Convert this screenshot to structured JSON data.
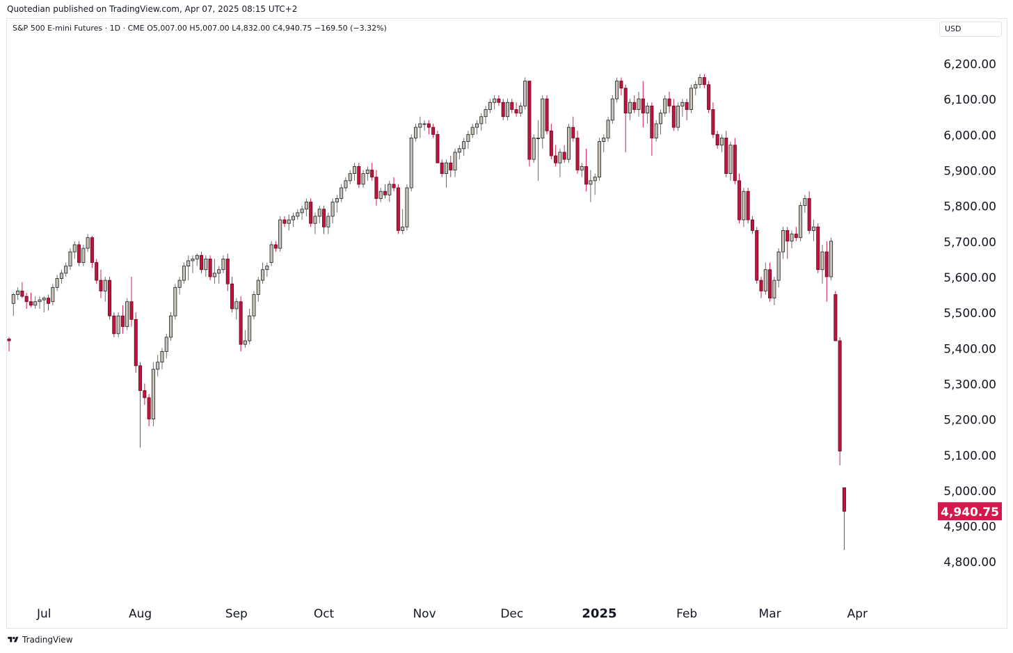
{
  "published": "Quotedian published on TradingView.com, Apr 07, 2025 08:15 UTC+2",
  "legend": "S&P 500 E-mini Futures · 1D · CME  O5,007.00  H5,007.00  L4,832.00  C4,940.75  −169.50 (−3.32%)",
  "currency": "USD",
  "brand": "TradingView",
  "colors": {
    "up_fill": "#c8c2b8",
    "down_fill": "#c2123e",
    "up_wick": "#6a6a6a",
    "down_wick": "#d3194c",
    "price_tag": "#d3194c"
  },
  "chart_data": {
    "type": "candlestick",
    "symbol": "S&P 500 E-mini Futures",
    "interval": "1D",
    "exchange": "CME",
    "last_price": 4940.75,
    "last_price_label": "4,940.75",
    "y_ticks": [
      6200,
      6100,
      6000,
      5900,
      5800,
      5700,
      5600,
      5500,
      5400,
      5300,
      5200,
      5100,
      5000,
      4900,
      4800
    ],
    "y_tick_labels": [
      "6,200.00",
      "6,100.00",
      "6,000.00",
      "5,900.00",
      "5,800.00",
      "5,700.00",
      "5,600.00",
      "5,500.00",
      "5,400.00",
      "5,300.00",
      "5,200.00",
      "5,100.00",
      "5,000.00",
      "4,900.00",
      "4,800.00"
    ],
    "x_labels": [
      {
        "label": "Jul",
        "index": 8
      },
      {
        "label": "Aug",
        "index": 30
      },
      {
        "label": "Sep",
        "index": 52
      },
      {
        "label": "Oct",
        "index": 72
      },
      {
        "label": "Nov",
        "index": 95
      },
      {
        "label": "Dec",
        "index": 115
      },
      {
        "label": "2025",
        "index": 135
      },
      {
        "label": "Feb",
        "index": 155
      },
      {
        "label": "Mar",
        "index": 174
      },
      {
        "label": "Apr",
        "index": 194
      }
    ],
    "ohlc": [
      [
        5425,
        5430,
        5390,
        5420
      ],
      [
        5525,
        5555,
        5490,
        5550
      ],
      [
        5550,
        5570,
        5535,
        5560
      ],
      [
        5560,
        5585,
        5540,
        5545
      ],
      [
        5545,
        5555,
        5510,
        5530
      ],
      [
        5530,
        5555,
        5515,
        5520
      ],
      [
        5520,
        5545,
        5510,
        5530
      ],
      [
        5530,
        5545,
        5510,
        5535
      ],
      [
        5535,
        5545,
        5500,
        5540
      ],
      [
        5540,
        5550,
        5505,
        5525
      ],
      [
        5530,
        5580,
        5520,
        5570
      ],
      [
        5570,
        5605,
        5560,
        5595
      ],
      [
        5595,
        5620,
        5580,
        5610
      ],
      [
        5610,
        5640,
        5600,
        5630
      ],
      [
        5630,
        5680,
        5620,
        5670
      ],
      [
        5670,
        5700,
        5650,
        5690
      ],
      [
        5690,
        5700,
        5630,
        5640
      ],
      [
        5640,
        5690,
        5630,
        5680
      ],
      [
        5680,
        5720,
        5670,
        5710
      ],
      [
        5710,
        5715,
        5625,
        5640
      ],
      [
        5640,
        5650,
        5580,
        5590
      ],
      [
        5590,
        5620,
        5540,
        5560
      ],
      [
        5560,
        5600,
        5530,
        5590
      ],
      [
        5590,
        5600,
        5480,
        5490
      ],
      [
        5490,
        5500,
        5430,
        5440
      ],
      [
        5440,
        5500,
        5430,
        5490
      ],
      [
        5490,
        5520,
        5440,
        5460
      ],
      [
        5460,
        5540,
        5450,
        5530
      ],
      [
        5530,
        5600,
        5460,
        5480
      ],
      [
        5480,
        5500,
        5330,
        5350
      ],
      [
        5350,
        5360,
        5120,
        5280
      ],
      [
        5280,
        5300,
        5240,
        5260
      ],
      [
        5260,
        5270,
        5180,
        5200
      ],
      [
        5200,
        5360,
        5180,
        5340
      ],
      [
        5340,
        5380,
        5320,
        5360
      ],
      [
        5360,
        5400,
        5340,
        5390
      ],
      [
        5390,
        5440,
        5370,
        5430
      ],
      [
        5430,
        5500,
        5420,
        5490
      ],
      [
        5490,
        5580,
        5480,
        5570
      ],
      [
        5570,
        5600,
        5550,
        5590
      ],
      [
        5590,
        5640,
        5580,
        5630
      ],
      [
        5630,
        5660,
        5590,
        5645
      ],
      [
        5645,
        5660,
        5610,
        5650
      ],
      [
        5650,
        5665,
        5630,
        5660
      ],
      [
        5660,
        5670,
        5610,
        5620
      ],
      [
        5620,
        5660,
        5600,
        5650
      ],
      [
        5650,
        5660,
        5590,
        5600
      ],
      [
        5600,
        5650,
        5580,
        5610
      ],
      [
        5610,
        5630,
        5580,
        5620
      ],
      [
        5620,
        5660,
        5610,
        5650
      ],
      [
        5650,
        5665,
        5560,
        5580
      ],
      [
        5580,
        5600,
        5500,
        5510
      ],
      [
        5510,
        5540,
        5480,
        5530
      ],
      [
        5530,
        5545,
        5390,
        5410
      ],
      [
        5410,
        5450,
        5400,
        5420
      ],
      [
        5420,
        5510,
        5410,
        5490
      ],
      [
        5490,
        5560,
        5480,
        5550
      ],
      [
        5550,
        5600,
        5530,
        5590
      ],
      [
        5590,
        5640,
        5580,
        5620
      ],
      [
        5620,
        5640,
        5600,
        5630
      ],
      [
        5640,
        5700,
        5630,
        5690
      ],
      [
        5690,
        5700,
        5670,
        5680
      ],
      [
        5680,
        5770,
        5670,
        5760
      ],
      [
        5760,
        5770,
        5740,
        5750
      ],
      [
        5750,
        5775,
        5730,
        5760
      ],
      [
        5760,
        5780,
        5740,
        5770
      ],
      [
        5770,
        5790,
        5760,
        5780
      ],
      [
        5780,
        5800,
        5760,
        5790
      ],
      [
        5790,
        5820,
        5770,
        5810
      ],
      [
        5810,
        5820,
        5740,
        5750
      ],
      [
        5750,
        5780,
        5720,
        5770
      ],
      [
        5770,
        5800,
        5750,
        5790
      ],
      [
        5790,
        5800,
        5720,
        5740
      ],
      [
        5740,
        5780,
        5720,
        5770
      ],
      [
        5770,
        5820,
        5750,
        5810
      ],
      [
        5810,
        5830,
        5780,
        5820
      ],
      [
        5820,
        5860,
        5810,
        5850
      ],
      [
        5850,
        5880,
        5840,
        5870
      ],
      [
        5870,
        5900,
        5860,
        5890
      ],
      [
        5890,
        5920,
        5870,
        5910
      ],
      [
        5910,
        5920,
        5850,
        5860
      ],
      [
        5860,
        5900,
        5850,
        5890
      ],
      [
        5890,
        5910,
        5870,
        5900
      ],
      [
        5900,
        5920,
        5870,
        5880
      ],
      [
        5880,
        5900,
        5800,
        5820
      ],
      [
        5820,
        5850,
        5810,
        5840
      ],
      [
        5840,
        5860,
        5820,
        5830
      ],
      [
        5830,
        5870,
        5810,
        5860
      ],
      [
        5860,
        5880,
        5840,
        5850
      ],
      [
        5850,
        5860,
        5720,
        5730
      ],
      [
        5730,
        5790,
        5720,
        5740
      ],
      [
        5740,
        5860,
        5730,
        5850
      ],
      [
        5850,
        6000,
        5840,
        5990
      ],
      [
        5990,
        6030,
        5980,
        6020
      ],
      [
        6020,
        6050,
        5990,
        6030
      ],
      [
        6030,
        6040,
        6010,
        6030
      ],
      [
        6030,
        6040,
        6000,
        6020
      ],
      [
        6020,
        6030,
        5990,
        6000
      ],
      [
        6000,
        6010,
        5920,
        5920
      ],
      [
        5920,
        5930,
        5880,
        5890
      ],
      [
        5890,
        5930,
        5850,
        5920
      ],
      [
        5920,
        5940,
        5880,
        5900
      ],
      [
        5900,
        5960,
        5880,
        5950
      ],
      [
        5950,
        5970,
        5930,
        5960
      ],
      [
        5960,
        5990,
        5940,
        5980
      ],
      [
        5980,
        6010,
        5960,
        6000
      ],
      [
        6000,
        6030,
        5990,
        6020
      ],
      [
        6020,
        6040,
        6000,
        6030
      ],
      [
        6030,
        6060,
        6010,
        6050
      ],
      [
        6050,
        6080,
        6030,
        6070
      ],
      [
        6070,
        6100,
        6060,
        6090
      ],
      [
        6090,
        6110,
        6070,
        6100
      ],
      [
        6100,
        6110,
        6080,
        6090
      ],
      [
        6090,
        6100,
        6040,
        6050
      ],
      [
        6050,
        6100,
        6040,
        6090
      ],
      [
        6090,
        6100,
        6060,
        6070
      ],
      [
        6070,
        6090,
        6050,
        6060
      ],
      [
        6060,
        6090,
        6050,
        6080
      ],
      [
        6080,
        6160,
        6070,
        6150
      ],
      [
        6150,
        6150,
        5910,
        5930
      ],
      [
        5930,
        6000,
        5920,
        5990
      ],
      [
        5990,
        6040,
        5870,
        5990
      ],
      [
        5990,
        6110,
        5960,
        6100
      ],
      [
        6100,
        6110,
        6000,
        6010
      ],
      [
        6010,
        6030,
        5930,
        5940
      ],
      [
        5940,
        5970,
        5910,
        5920
      ],
      [
        5920,
        5960,
        5880,
        5950
      ],
      [
        5950,
        5970,
        5920,
        5930
      ],
      [
        5930,
        6030,
        5920,
        6020
      ],
      [
        6020,
        6050,
        5980,
        5990
      ],
      [
        5990,
        6010,
        5890,
        5900
      ],
      [
        5900,
        5920,
        5880,
        5910
      ],
      [
        5910,
        5960,
        5840,
        5860
      ],
      [
        5860,
        5900,
        5810,
        5870
      ],
      [
        5870,
        5890,
        5830,
        5880
      ],
      [
        5880,
        5990,
        5870,
        5980
      ],
      [
        5980,
        6000,
        5950,
        5990
      ],
      [
        5990,
        6050,
        5980,
        6040
      ],
      [
        6040,
        6110,
        6030,
        6100
      ],
      [
        6100,
        6160,
        6090,
        6150
      ],
      [
        6150,
        6160,
        6110,
        6130
      ],
      [
        6130,
        6140,
        5950,
        6060
      ],
      [
        6060,
        6100,
        6040,
        6090
      ],
      [
        6090,
        6110,
        6060,
        6070
      ],
      [
        6070,
        6120,
        6050,
        6100
      ],
      [
        6100,
        6150,
        6020,
        6060
      ],
      [
        6060,
        6090,
        6030,
        6080
      ],
      [
        6080,
        6090,
        5940,
        5990
      ],
      [
        5990,
        6040,
        5980,
        6030
      ],
      [
        6030,
        6070,
        6000,
        6060
      ],
      [
        6060,
        6110,
        6050,
        6100
      ],
      [
        6100,
        6120,
        6060,
        6080
      ],
      [
        6080,
        6100,
        6010,
        6020
      ],
      [
        6020,
        6090,
        6010,
        6080
      ],
      [
        6080,
        6100,
        6050,
        6090
      ],
      [
        6090,
        6100,
        6040,
        6070
      ],
      [
        6070,
        6140,
        6060,
        6130
      ],
      [
        6130,
        6150,
        6110,
        6140
      ],
      [
        6140,
        6170,
        6130,
        6160
      ],
      [
        6160,
        6170,
        6130,
        6140
      ],
      [
        6140,
        6150,
        6060,
        6070
      ],
      [
        6070,
        6090,
        5990,
        6000
      ],
      [
        6000,
        6010,
        5960,
        5970
      ],
      [
        5970,
        6000,
        5950,
        5990
      ],
      [
        5990,
        6010,
        5880,
        5890
      ],
      [
        5890,
        5980,
        5870,
        5970
      ],
      [
        5970,
        5990,
        5860,
        5870
      ],
      [
        5870,
        5890,
        5750,
        5760
      ],
      [
        5760,
        5850,
        5740,
        5840
      ],
      [
        5840,
        5850,
        5750,
        5760
      ],
      [
        5760,
        5770,
        5720,
        5730
      ],
      [
        5730,
        5740,
        5580,
        5590
      ],
      [
        5590,
        5600,
        5540,
        5560
      ],
      [
        5560,
        5640,
        5550,
        5620
      ],
      [
        5620,
        5640,
        5530,
        5540
      ],
      [
        5540,
        5600,
        5520,
        5590
      ],
      [
        5590,
        5680,
        5570,
        5670
      ],
      [
        5670,
        5740,
        5650,
        5730
      ],
      [
        5730,
        5740,
        5650,
        5700
      ],
      [
        5700,
        5730,
        5680,
        5720
      ],
      [
        5720,
        5740,
        5700,
        5710
      ],
      [
        5710,
        5810,
        5700,
        5800
      ],
      [
        5800,
        5830,
        5780,
        5820
      ],
      [
        5820,
        5840,
        5720,
        5730
      ],
      [
        5730,
        5760,
        5700,
        5740
      ],
      [
        5740,
        5750,
        5610,
        5620
      ],
      [
        5620,
        5690,
        5580,
        5670
      ],
      [
        5670,
        5700,
        5530,
        5600
      ],
      [
        5600,
        5710,
        5590,
        5700
      ],
      [
        5550,
        5560,
        5420,
        5420
      ],
      [
        5420,
        5430,
        5070,
        5110
      ],
      [
        5007,
        5007,
        4832,
        4940.75
      ]
    ]
  }
}
